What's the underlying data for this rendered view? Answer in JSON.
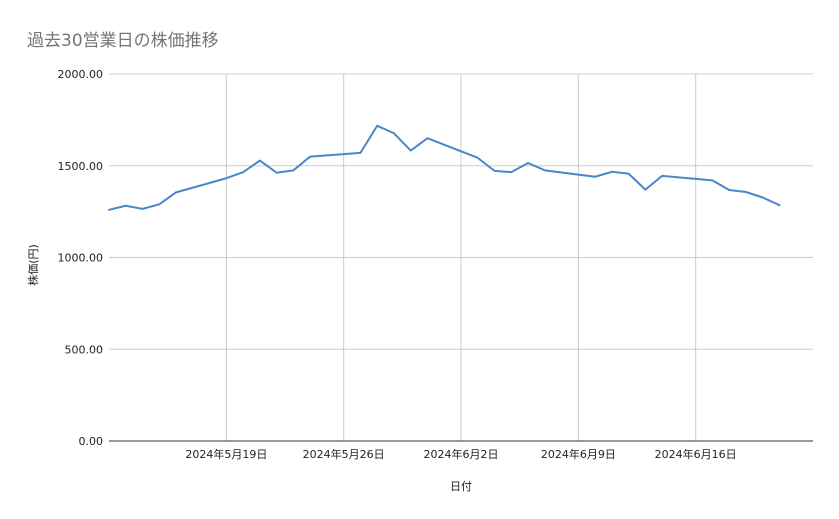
{
  "chart_data": {
    "type": "line",
    "title": "過去30営業日の株価推移",
    "xlabel": "日付",
    "ylabel": "株価(円)",
    "ylim": [
      0,
      2000
    ],
    "y_ticks": [
      "0.00",
      "500.00",
      "1000.00",
      "1500.00",
      "2000.00"
    ],
    "y_tick_values": [
      0,
      500,
      1000,
      1500,
      2000
    ],
    "xlim": [
      "2024-05-12",
      "2024-06-23"
    ],
    "x_ticks": [
      {
        "date": "2024-05-19",
        "label": "2024年5月19日"
      },
      {
        "date": "2024-05-26",
        "label": "2024年5月26日"
      },
      {
        "date": "2024-06-02",
        "label": "2024年6月2日"
      },
      {
        "date": "2024-06-09",
        "label": "2024年6月9日"
      },
      {
        "date": "2024-06-16",
        "label": "2024年6月16日"
      }
    ],
    "grid": true,
    "legend": "none",
    "series": [
      {
        "color": "#4a86c8",
        "points": [
          {
            "x": "2024-05-12",
            "y": 1260
          },
          {
            "x": "2024-05-13",
            "y": 1282
          },
          {
            "x": "2024-05-14",
            "y": 1265
          },
          {
            "x": "2024-05-15",
            "y": 1290
          },
          {
            "x": "2024-05-16",
            "y": 1355
          },
          {
            "x": "2024-05-19",
            "y": 1432
          },
          {
            "x": "2024-05-20",
            "y": 1465
          },
          {
            "x": "2024-05-21",
            "y": 1528
          },
          {
            "x": "2024-05-22",
            "y": 1462
          },
          {
            "x": "2024-05-23",
            "y": 1475
          },
          {
            "x": "2024-05-24",
            "y": 1550
          },
          {
            "x": "2024-05-27",
            "y": 1570
          },
          {
            "x": "2024-05-28",
            "y": 1718
          },
          {
            "x": "2024-05-29",
            "y": 1677
          },
          {
            "x": "2024-05-30",
            "y": 1583
          },
          {
            "x": "2024-05-31",
            "y": 1650
          },
          {
            "x": "2024-06-03",
            "y": 1543
          },
          {
            "x": "2024-06-04",
            "y": 1472
          },
          {
            "x": "2024-06-05",
            "y": 1465
          },
          {
            "x": "2024-06-06",
            "y": 1515
          },
          {
            "x": "2024-06-07",
            "y": 1475
          },
          {
            "x": "2024-06-10",
            "y": 1440
          },
          {
            "x": "2024-06-11",
            "y": 1467
          },
          {
            "x": "2024-06-12",
            "y": 1457
          },
          {
            "x": "2024-06-13",
            "y": 1370
          },
          {
            "x": "2024-06-14",
            "y": 1445
          },
          {
            "x": "2024-06-17",
            "y": 1420
          },
          {
            "x": "2024-06-18",
            "y": 1368
          },
          {
            "x": "2024-06-19",
            "y": 1357
          },
          {
            "x": "2024-06-20",
            "y": 1327
          },
          {
            "x": "2024-06-21",
            "y": 1285
          }
        ]
      }
    ]
  }
}
